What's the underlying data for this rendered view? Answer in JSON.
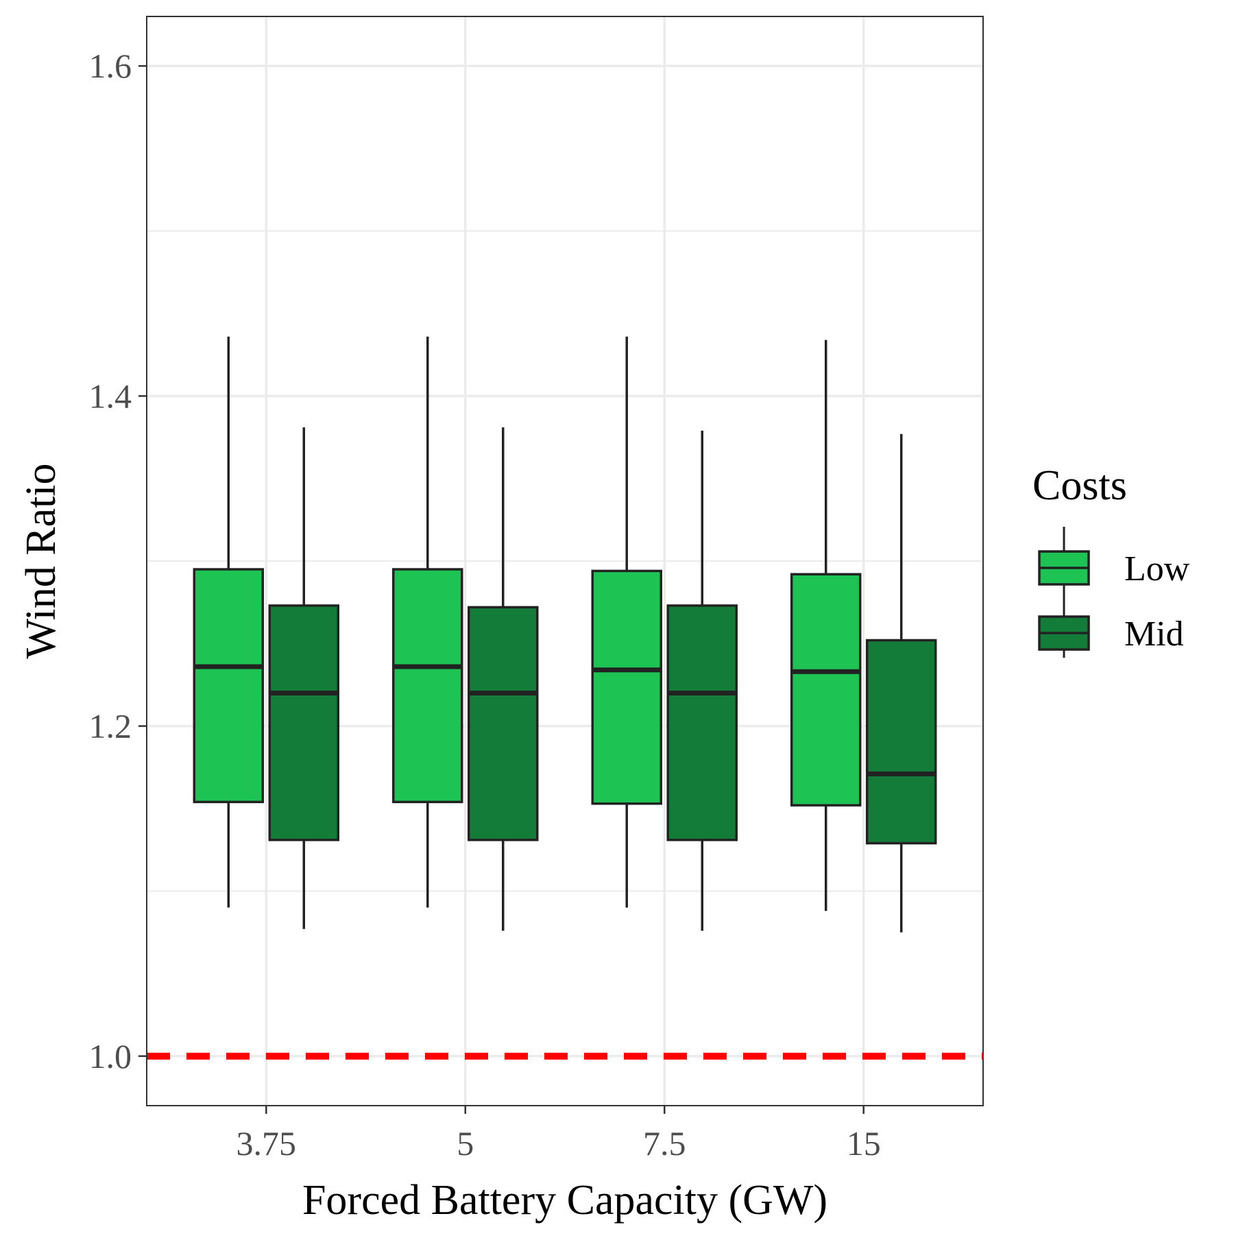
{
  "chart_data": {
    "type": "boxplot",
    "xlabel": "Forced Battery Capacity (GW)",
    "ylabel": "Wind Ratio",
    "categories": [
      "3.75",
      "5",
      "7.5",
      "15"
    ],
    "ylim": [
      0.97,
      1.63
    ],
    "y_ticks": [
      1.0,
      1.2,
      1.4,
      1.6
    ],
    "y_minor_ticks": [
      1.1,
      1.3,
      1.5
    ],
    "grid": true,
    "legend": {
      "title": "Costs",
      "placement": "right"
    },
    "series": [
      {
        "name": "Low",
        "color": "#1dc454",
        "boxes": [
          {
            "whisker_low": 1.09,
            "q1": 1.154,
            "median": 1.236,
            "q3": 1.295,
            "whisker_high": 1.436
          },
          {
            "whisker_low": 1.09,
            "q1": 1.154,
            "median": 1.236,
            "q3": 1.295,
            "whisker_high": 1.436
          },
          {
            "whisker_low": 1.09,
            "q1": 1.153,
            "median": 1.234,
            "q3": 1.294,
            "whisker_high": 1.436
          },
          {
            "whisker_low": 1.088,
            "q1": 1.152,
            "median": 1.233,
            "q3": 1.292,
            "whisker_high": 1.434
          }
        ]
      },
      {
        "name": "Mid",
        "color": "#127c38",
        "boxes": [
          {
            "whisker_low": 1.077,
            "q1": 1.131,
            "median": 1.22,
            "q3": 1.273,
            "whisker_high": 1.381
          },
          {
            "whisker_low": 1.076,
            "q1": 1.131,
            "median": 1.22,
            "q3": 1.272,
            "whisker_high": 1.381
          },
          {
            "whisker_low": 1.076,
            "q1": 1.131,
            "median": 1.22,
            "q3": 1.273,
            "whisker_high": 1.379
          },
          {
            "whisker_low": 1.075,
            "q1": 1.129,
            "median": 1.171,
            "q3": 1.252,
            "whisker_high": 1.377
          }
        ]
      }
    ],
    "reference_line": {
      "y": 1.0,
      "color": "#ff0000",
      "style": "dashed"
    },
    "panel_background": "#ffffff",
    "grid_color": "#ebebeb",
    "box_outline_color": "#222222"
  }
}
